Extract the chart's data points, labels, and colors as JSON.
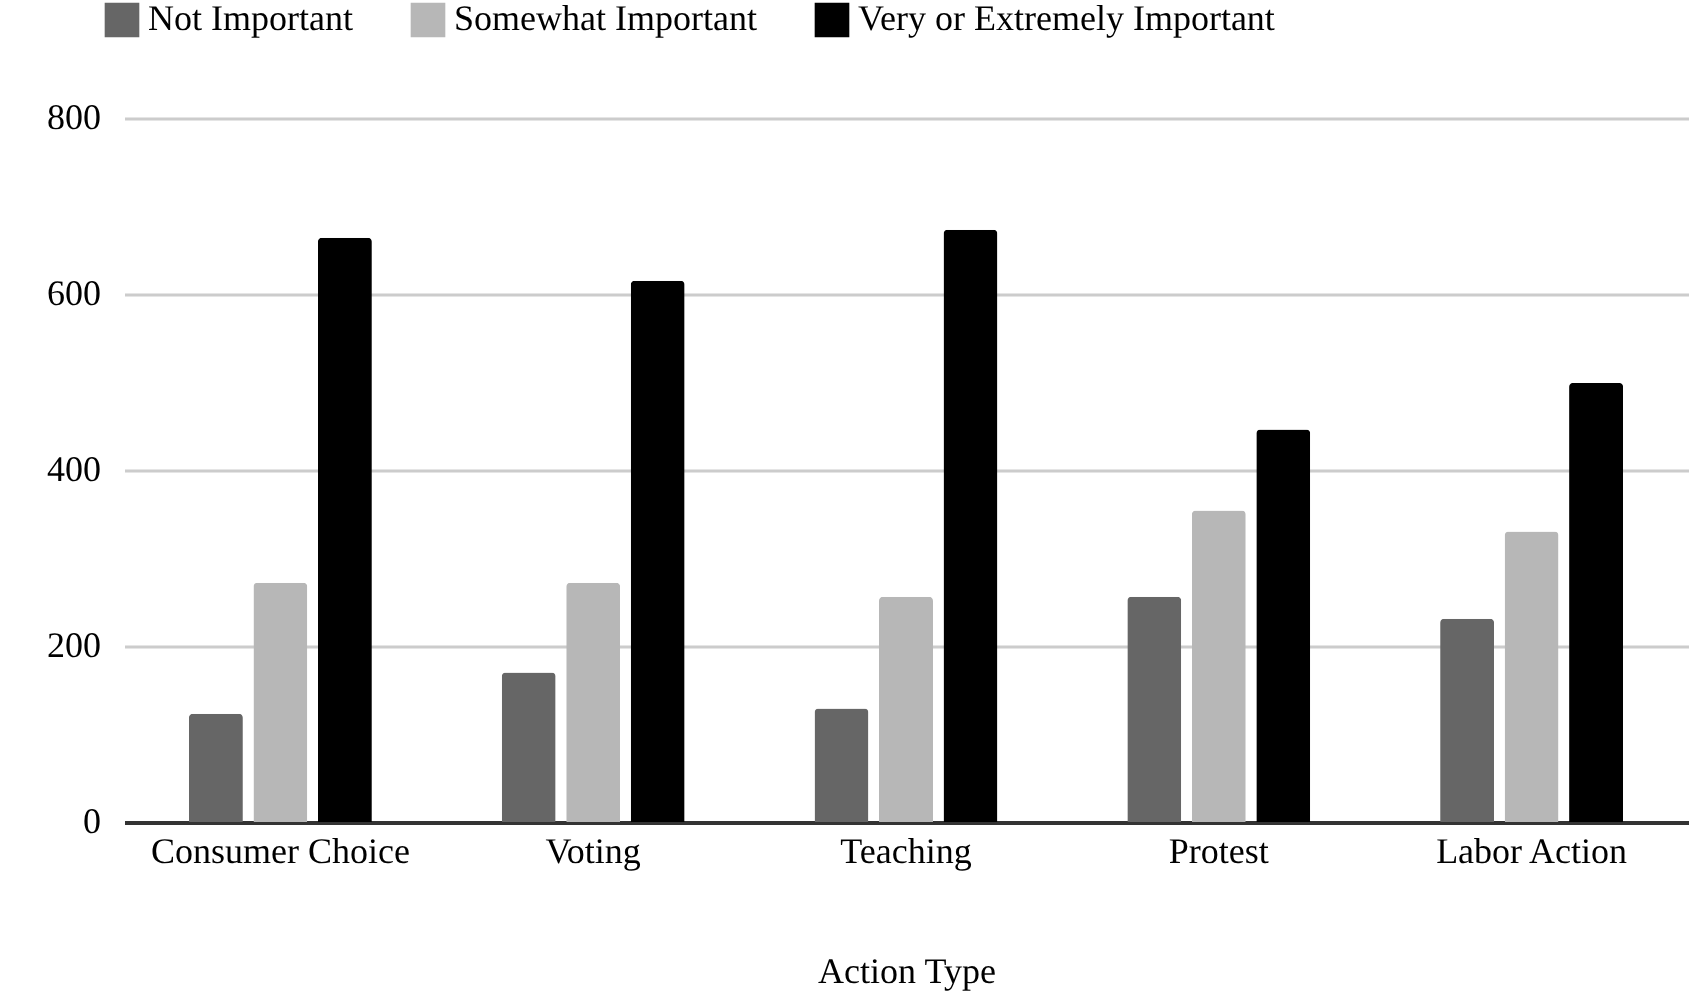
{
  "chart_data": {
    "type": "bar",
    "xlabel": "Action Type",
    "categories": [
      "Consumer Choice",
      "Voting",
      "Teaching",
      "Protest",
      "Labor Action"
    ],
    "series": [
      {
        "name": "Not Important",
        "color": "#666666",
        "values": [
          123,
          170,
          129,
          256,
          231
        ]
      },
      {
        "name": "Somewhat Important",
        "color": "#b7b7b7",
        "values": [
          272,
          272,
          256,
          354,
          330
        ]
      },
      {
        "name": "Very or Extremely Important",
        "color": "#000000",
        "values": [
          664,
          615,
          673,
          446,
          499
        ]
      }
    ],
    "ylim": [
      0,
      800
    ],
    "yticks": [
      0,
      200,
      400,
      600,
      800
    ],
    "grid": "y",
    "legend": "top left"
  }
}
